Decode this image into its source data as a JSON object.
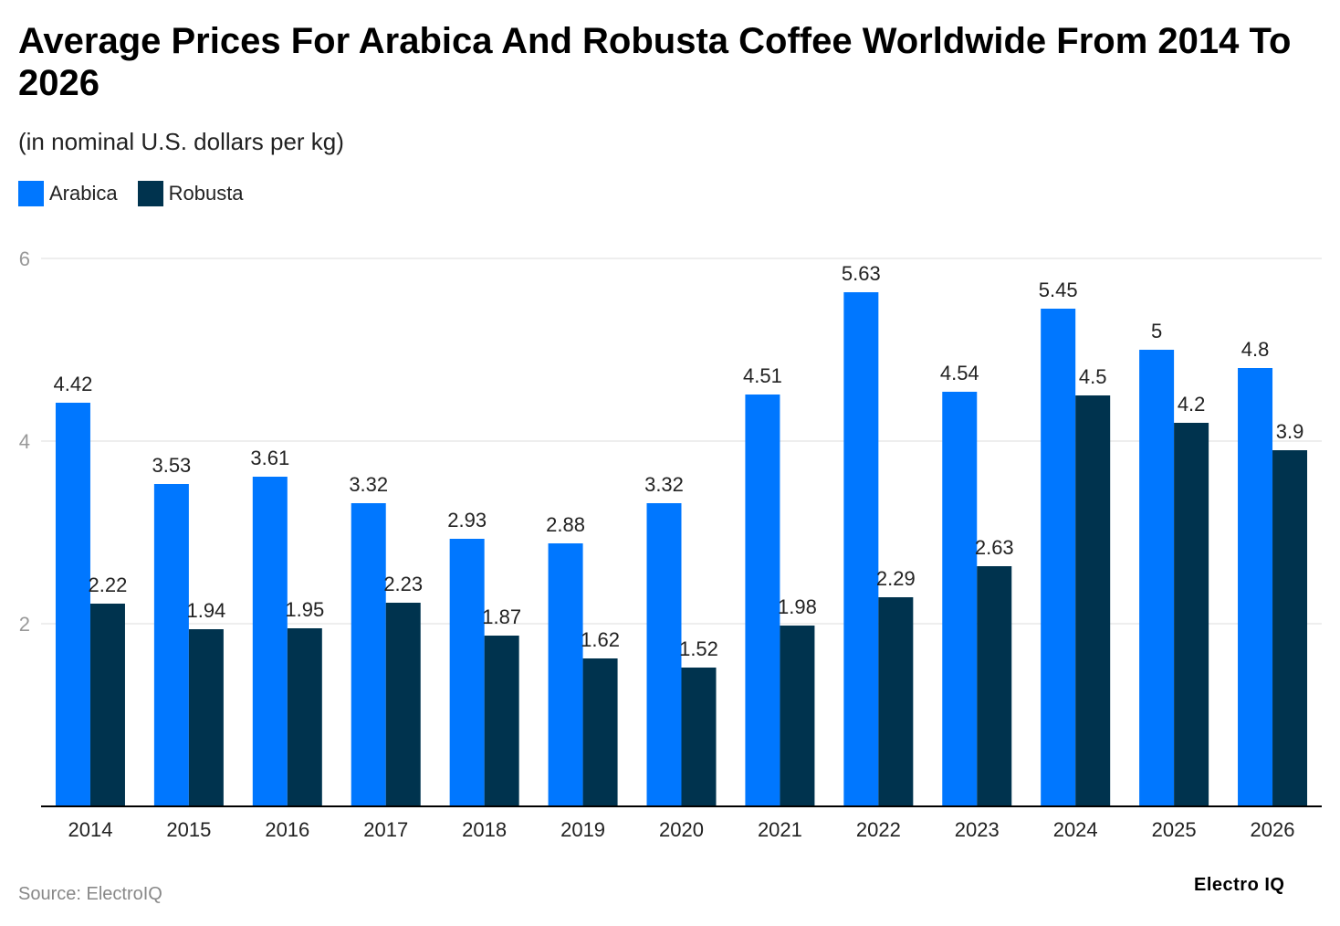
{
  "title": "Average Prices For Arabica And Robusta Coffee Worldwide From 2014 To 2026",
  "subtitle": "(in nominal U.S. dollars per kg)",
  "source": "Source: ElectroIQ",
  "brand": "Electro IQ",
  "colors": {
    "arabica": "#0077FF",
    "robusta": "#00334E",
    "grid": "#dddddd",
    "axis": "#000000",
    "tick_label": "#999999"
  },
  "chart_data": {
    "type": "bar",
    "title": "Average Prices For Arabica And Robusta Coffee Worldwide From 2014 To 2026",
    "subtitle": "(in nominal U.S. dollars per kg)",
    "xlabel": "",
    "ylabel": "",
    "ylim": [
      0,
      6
    ],
    "yticks": [
      2,
      4,
      6
    ],
    "grid": true,
    "legend_position": "top-left",
    "categories": [
      "2014",
      "2015",
      "2016",
      "2017",
      "2018",
      "2019",
      "2020",
      "2021",
      "2022",
      "2023",
      "2024",
      "2025",
      "2026"
    ],
    "series": [
      {
        "name": "Arabica",
        "color": "#0077FF",
        "values": [
          4.42,
          3.53,
          3.61,
          3.32,
          2.93,
          2.88,
          3.32,
          4.51,
          5.63,
          4.54,
          5.45,
          5,
          4.8
        ]
      },
      {
        "name": "Robusta",
        "color": "#00334E",
        "values": [
          2.22,
          1.94,
          1.95,
          2.23,
          1.87,
          1.62,
          1.52,
          1.98,
          2.29,
          2.63,
          4.5,
          4.2,
          3.9
        ]
      }
    ]
  }
}
